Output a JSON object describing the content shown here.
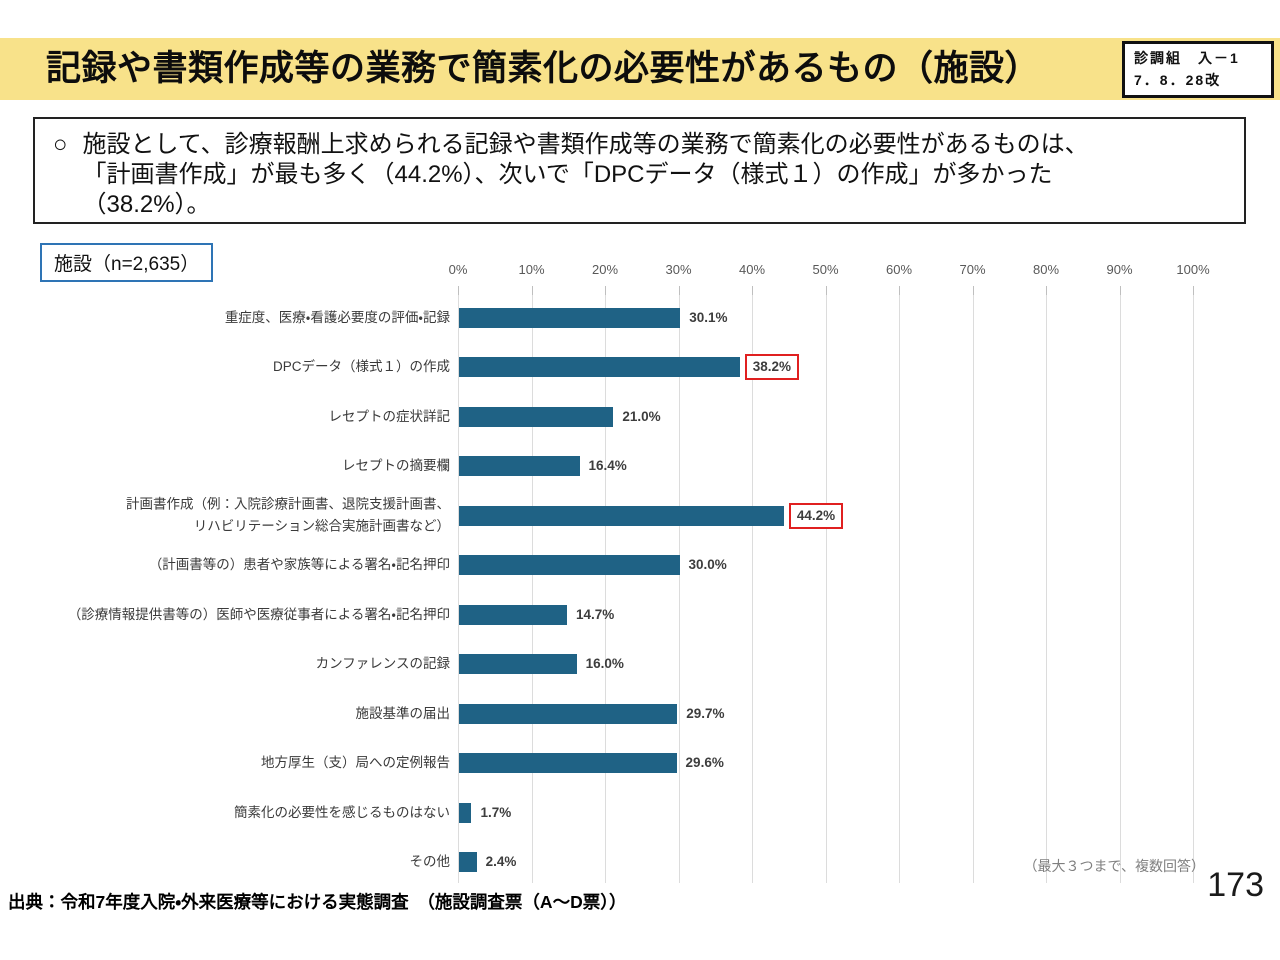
{
  "header": {
    "title": "記録や書類作成等の業務で簡素化の必要性があるもの（施設）",
    "badge": {
      "line1": "診調組　入－1",
      "line2": "7．8．28改"
    }
  },
  "summary": {
    "bullet": "○",
    "text": "施設として、診療報酬上求められる記録や書類作成等の業務で簡素化の必要性があるものは、\n「計画書作成」が最も多く（44.2%）、次いで「DPCデータ（様式１）の作成」が多かった\n（38.2%）。"
  },
  "chart_data": {
    "type": "bar",
    "orientation": "horizontal",
    "group_label": "施設（n=2,635）",
    "categories": [
      "重症度、医療・看護必要度の評価・記録",
      "DPCデータ（様式１）の作成",
      "レセプトの症状詳記",
      "レセプトの摘要欄",
      "計画書作成（例：入院診療計画書、退院支援計画書、\nリハビリテーション総合実施計画書など）",
      "（計画書等の）患者や家族等による署名・記名押印",
      "（診療情報提供書等の）医師や医療従事者による署名・記名押印",
      "カンファレンスの記録",
      "施設基準の届出",
      "地方厚生（支）局への定例報告",
      "簡素化の必要性を感じるものはない",
      "その他"
    ],
    "values": [
      30.1,
      38.2,
      21.0,
      16.4,
      44.2,
      30.0,
      14.7,
      16.0,
      29.7,
      29.6,
      1.7,
      2.4
    ],
    "value_labels": [
      "30.1%",
      "38.2%",
      "21.0%",
      "16.4%",
      "44.2%",
      "30.0%",
      "14.7%",
      "16.0%",
      "29.7%",
      "29.6%",
      "1.7%",
      "2.4%"
    ],
    "highlighted_indices": [
      1,
      4
    ],
    "x_ticks": [
      "0%",
      "10%",
      "20%",
      "30%",
      "40%",
      "50%",
      "60%",
      "70%",
      "80%",
      "90%",
      "100%"
    ],
    "xlim": [
      0,
      100
    ],
    "grid": true,
    "legend": false,
    "bar_color": "#1f6285",
    "highlight_box_color": "#e02020",
    "note": "（最大３つまで、複数回答）"
  },
  "footer": {
    "source": "出典：令和7年度入院・外来医療等における実態調査　（施設調査票（A～D票））",
    "page_number": "173"
  }
}
